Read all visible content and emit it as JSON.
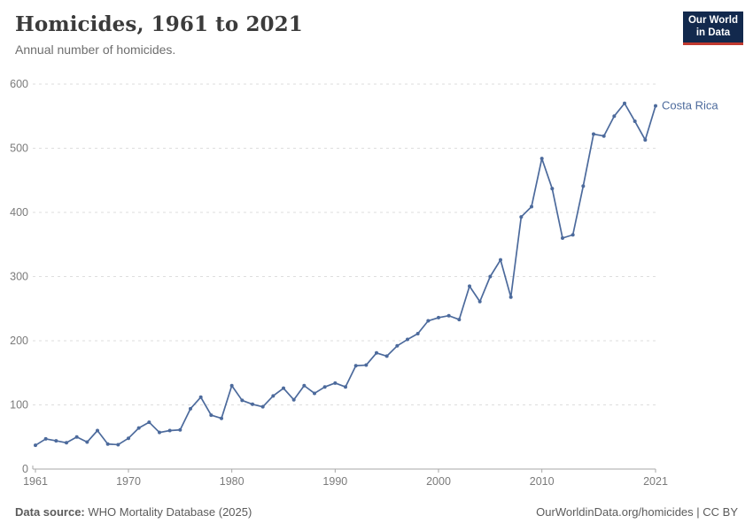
{
  "header": {
    "title": "Homicides, 1961 to 2021",
    "subtitle": "Annual number of homicides.",
    "logo_line1": "Our World",
    "logo_line2": "in Data"
  },
  "chart_data": {
    "type": "line",
    "title": "Homicides, 1961 to 2021",
    "subtitle": "Annual number of homicides.",
    "xlabel": "",
    "ylabel": "",
    "xlim": [
      1961,
      2021
    ],
    "ylim": [
      0,
      600
    ],
    "xticks": [
      1961,
      1970,
      1980,
      1990,
      2000,
      2010,
      2021
    ],
    "yticks": [
      0,
      100,
      200,
      300,
      400,
      500,
      600
    ],
    "grid": "horizontal-dashed",
    "legend_position": "end-of-line-label",
    "x": [
      1961,
      1962,
      1963,
      1964,
      1965,
      1966,
      1967,
      1968,
      1969,
      1970,
      1971,
      1972,
      1973,
      1974,
      1975,
      1976,
      1977,
      1978,
      1979,
      1980,
      1981,
      1982,
      1983,
      1984,
      1985,
      1986,
      1987,
      1988,
      1989,
      1990,
      1991,
      1992,
      1993,
      1994,
      1995,
      1996,
      1997,
      1998,
      1999,
      2000,
      2001,
      2002,
      2003,
      2004,
      2005,
      2006,
      2007,
      2008,
      2009,
      2010,
      2011,
      2012,
      2013,
      2014,
      2015,
      2016,
      2017,
      2018,
      2019,
      2020,
      2021
    ],
    "series": [
      {
        "name": "Costa Rica",
        "color": "#4C6A9C",
        "values": [
          37,
          47,
          44,
          41,
          50,
          42,
          60,
          39,
          38,
          48,
          64,
          73,
          57,
          60,
          61,
          94,
          112,
          84,
          79,
          130,
          107,
          101,
          97,
          114,
          126,
          108,
          130,
          118,
          128,
          134,
          128,
          161,
          162,
          181,
          176,
          192,
          202,
          211,
          231,
          236,
          239,
          233,
          285,
          261,
          300,
          326,
          268,
          393,
          409,
          484,
          437,
          360,
          365,
          441,
          522,
          519,
          550,
          570,
          542,
          513,
          566
        ]
      }
    ]
  },
  "footer": {
    "source_label": "Data source:",
    "source_text": " WHO Mortality Database (2025)",
    "right_text": "OurWorldinData.org/homicides | CC BY"
  },
  "colors": {
    "line": "#4C6A9C",
    "grid": "#dedede",
    "axis": "#a7a7a7",
    "tick_label": "#7b7b7b",
    "title": "#3b3b3b",
    "subtitle": "#6e6e6e",
    "logo_bg": "#12294d",
    "logo_red": "#c0392f"
  }
}
